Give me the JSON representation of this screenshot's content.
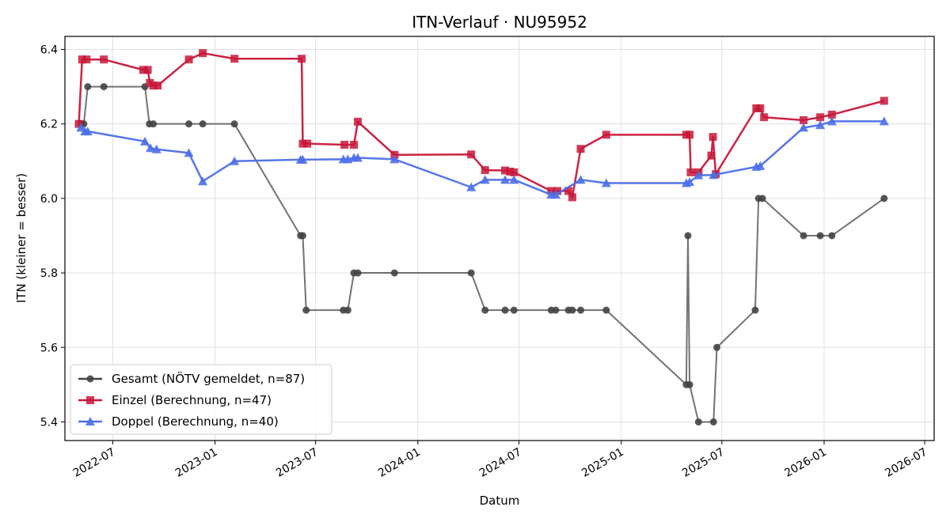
{
  "chart_data": {
    "type": "line",
    "title": "ITN-Verlauf · NU95952",
    "xlabel": "Datum",
    "ylabel": "ITN  (kleiner = besser)",
    "ylim": [
      5.35,
      6.435
    ],
    "xlim": [
      "2022-04-06",
      "2026-07-18"
    ],
    "grid": true,
    "legend_position": "lower-left",
    "x_ticks": [
      "2022-07",
      "2023-01",
      "2023-07",
      "2024-01",
      "2024-07",
      "2025-01",
      "2025-07",
      "2026-01",
      "2026-07"
    ],
    "y_ticks": [
      5.4,
      5.6,
      5.8,
      6.0,
      6.2,
      6.4
    ],
    "series": [
      {
        "name": "Gesamt (NÖTV gemeldet, n=87)",
        "color": "#444444",
        "marker": "circle",
        "points": [
          [
            "2022-05-05",
            6.2
          ],
          [
            "2022-05-10",
            6.2
          ],
          [
            "2022-05-17",
            6.3
          ],
          [
            "2022-06-15",
            6.3
          ],
          [
            "2022-08-28",
            6.3
          ],
          [
            "2022-09-05",
            6.2
          ],
          [
            "2022-09-12",
            6.2
          ],
          [
            "2022-11-15",
            6.2
          ],
          [
            "2022-12-10",
            6.2
          ],
          [
            "2023-02-05",
            6.2
          ],
          [
            "2023-06-04",
            5.9
          ],
          [
            "2023-06-08",
            5.9
          ],
          [
            "2023-06-14",
            5.7
          ],
          [
            "2023-08-20",
            5.7
          ],
          [
            "2023-08-28",
            5.7
          ],
          [
            "2023-09-08",
            5.8
          ],
          [
            "2023-09-15",
            5.8
          ],
          [
            "2023-11-20",
            5.8
          ],
          [
            "2024-04-06",
            5.8
          ],
          [
            "2024-05-01",
            5.7
          ],
          [
            "2024-06-06",
            5.7
          ],
          [
            "2024-06-22",
            5.7
          ],
          [
            "2024-08-28",
            5.7
          ],
          [
            "2024-09-05",
            5.7
          ],
          [
            "2024-09-28",
            5.7
          ],
          [
            "2024-10-05",
            5.7
          ],
          [
            "2024-10-20",
            5.7
          ],
          [
            "2024-12-05",
            5.7
          ],
          [
            "2025-04-28",
            5.5
          ],
          [
            "2025-05-01",
            5.9
          ],
          [
            "2025-05-04",
            5.5
          ],
          [
            "2025-05-20",
            5.4
          ],
          [
            "2025-06-16",
            5.4
          ],
          [
            "2025-06-22",
            5.6
          ],
          [
            "2025-08-30",
            5.7
          ],
          [
            "2025-09-05",
            6.0
          ],
          [
            "2025-09-12",
            6.0
          ],
          [
            "2025-11-25",
            5.9
          ],
          [
            "2025-12-25",
            5.9
          ],
          [
            "2026-01-15",
            5.9
          ],
          [
            "2026-04-19",
            6.0
          ]
        ]
      },
      {
        "name": "Einzel (Berechnung, n=47)",
        "color": "#c8173a",
        "marker": "square",
        "points": [
          [
            "2022-05-01",
            6.2
          ],
          [
            "2022-05-07",
            6.373
          ],
          [
            "2022-05-15",
            6.373
          ],
          [
            "2022-06-15",
            6.373
          ],
          [
            "2022-08-25",
            6.345
          ],
          [
            "2022-09-02",
            6.345
          ],
          [
            "2022-09-06",
            6.31
          ],
          [
            "2022-09-12",
            6.303
          ],
          [
            "2022-09-20",
            6.303
          ],
          [
            "2022-11-15",
            6.373
          ],
          [
            "2022-12-10",
            6.39
          ],
          [
            "2023-02-05",
            6.375
          ],
          [
            "2023-06-06",
            6.375
          ],
          [
            "2023-06-08",
            6.147
          ],
          [
            "2023-06-16",
            6.147
          ],
          [
            "2023-08-22",
            6.144
          ],
          [
            "2023-09-08",
            6.144
          ],
          [
            "2023-09-15",
            6.206
          ],
          [
            "2023-11-20",
            6.117
          ],
          [
            "2024-04-06",
            6.118
          ],
          [
            "2024-05-01",
            6.076
          ],
          [
            "2024-06-06",
            6.075
          ],
          [
            "2024-06-15",
            6.072
          ],
          [
            "2024-06-22",
            6.07
          ],
          [
            "2024-08-28",
            6.02
          ],
          [
            "2024-09-08",
            6.02
          ],
          [
            "2024-09-28",
            6.02
          ],
          [
            "2024-10-05",
            6.003
          ],
          [
            "2024-10-20",
            6.133
          ],
          [
            "2024-12-05",
            6.171
          ],
          [
            "2025-04-28",
            6.171
          ],
          [
            "2025-05-04",
            6.171
          ],
          [
            "2025-05-06",
            6.07
          ],
          [
            "2025-05-20",
            6.07
          ],
          [
            "2025-06-12",
            6.115
          ],
          [
            "2025-06-15",
            6.165
          ],
          [
            "2025-06-20",
            6.065
          ],
          [
            "2025-09-01",
            6.242
          ],
          [
            "2025-09-08",
            6.242
          ],
          [
            "2025-09-15",
            6.218
          ],
          [
            "2025-11-25",
            6.21
          ],
          [
            "2025-12-25",
            6.218
          ],
          [
            "2026-01-15",
            6.225
          ],
          [
            "2026-04-19",
            6.262
          ]
        ]
      },
      {
        "name": "Doppel (Berechnung, n=40)",
        "color": "#4c6fe8",
        "marker": "triangle",
        "points": [
          [
            "2022-05-05",
            6.19
          ],
          [
            "2022-05-12",
            6.18
          ],
          [
            "2022-05-17",
            6.18
          ],
          [
            "2022-08-28",
            6.153
          ],
          [
            "2022-09-07",
            6.135
          ],
          [
            "2022-09-18",
            6.132
          ],
          [
            "2022-11-15",
            6.122
          ],
          [
            "2022-12-10",
            6.046
          ],
          [
            "2023-02-05",
            6.1
          ],
          [
            "2023-06-04",
            6.104
          ],
          [
            "2023-06-08",
            6.104
          ],
          [
            "2023-08-20",
            6.105
          ],
          [
            "2023-08-28",
            6.105
          ],
          [
            "2023-09-08",
            6.109
          ],
          [
            "2023-09-15",
            6.109
          ],
          [
            "2023-11-20",
            6.105
          ],
          [
            "2024-04-06",
            6.03
          ],
          [
            "2024-05-01",
            6.05
          ],
          [
            "2024-06-06",
            6.05
          ],
          [
            "2024-06-22",
            6.05
          ],
          [
            "2024-08-28",
            6.01
          ],
          [
            "2024-09-05",
            6.01
          ],
          [
            "2024-10-20",
            6.05
          ],
          [
            "2024-12-05",
            6.041
          ],
          [
            "2025-04-28",
            6.041
          ],
          [
            "2025-05-04",
            6.044
          ],
          [
            "2025-05-20",
            6.062
          ],
          [
            "2025-06-16",
            6.063
          ],
          [
            "2025-09-01",
            6.085
          ],
          [
            "2025-09-08",
            6.087
          ],
          [
            "2025-11-25",
            6.19
          ],
          [
            "2025-12-25",
            6.197
          ],
          [
            "2026-01-15",
            6.207
          ],
          [
            "2026-04-19",
            6.207
          ]
        ]
      }
    ]
  }
}
